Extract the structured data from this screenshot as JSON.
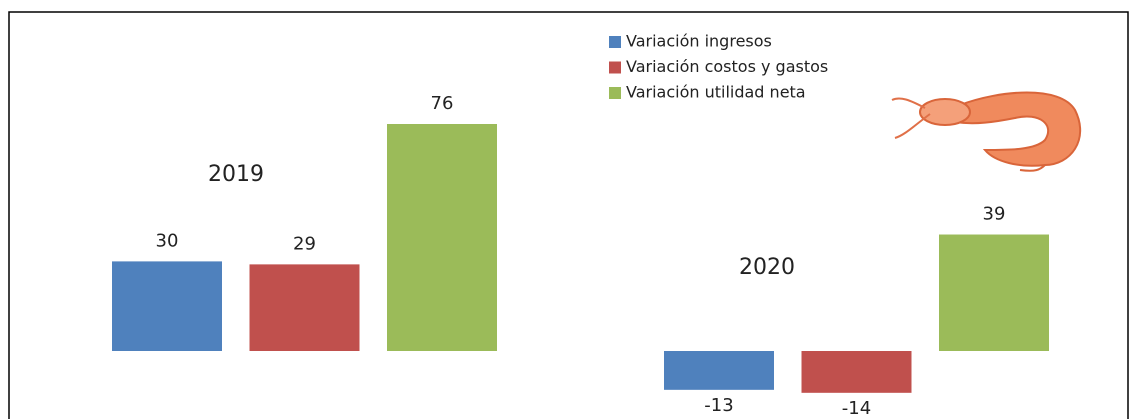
{
  "chart_data": {
    "type": "bar",
    "categories": [
      "2019",
      "2020"
    ],
    "series": [
      {
        "name": "Variación ingresos",
        "color": "#4f81bd",
        "values": [
          30,
          -13
        ]
      },
      {
        "name": "Variación costos y gastos",
        "color": "#c0504d",
        "values": [
          29,
          -14
        ]
      },
      {
        "name": "Variación utilidad neta",
        "color": "#9bbb59",
        "values": [
          76,
          39
        ]
      }
    ]
  }
}
